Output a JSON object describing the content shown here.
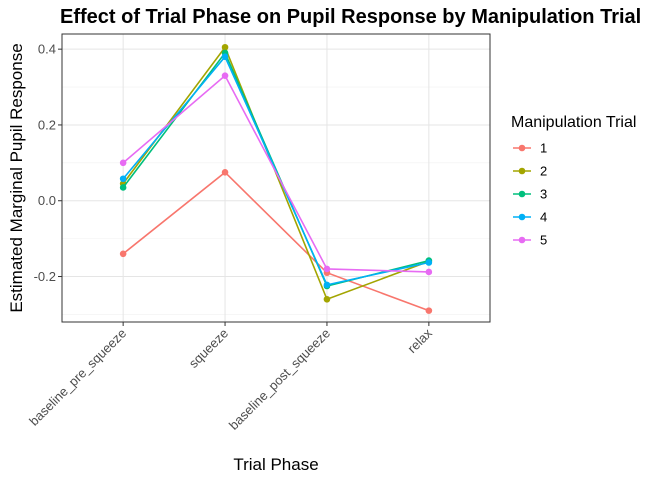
{
  "chart_data": {
    "type": "line",
    "title": "Effect of Trial Phase on Pupil Response by Manipulation Trial",
    "xlabel": "Trial Phase",
    "ylabel": "Estimated Marginal Pupil Response",
    "categories": [
      "baseline_pre_squeeze",
      "squeeze",
      "baseline_post_squeeze",
      "relax"
    ],
    "ylim": [
      -0.32,
      0.44
    ],
    "yticks": [
      -0.2,
      0.0,
      0.2,
      0.4
    ],
    "ytick_labels": [
      "-0.2",
      "0.0",
      "0.2",
      "0.4"
    ],
    "grid": true,
    "legend": {
      "title": "Manipulation Trial",
      "position": "right"
    },
    "series": [
      {
        "name": "1",
        "color": "#F8766D",
        "values": [
          -0.14,
          0.075,
          -0.19,
          -0.29
        ]
      },
      {
        "name": "2",
        "color": "#A3A500",
        "values": [
          0.045,
          0.405,
          -0.26,
          -0.16
        ]
      },
      {
        "name": "3",
        "color": "#00BF7D",
        "values": [
          0.035,
          0.39,
          -0.225,
          -0.158
        ]
      },
      {
        "name": "4",
        "color": "#00B0F6",
        "values": [
          0.058,
          0.38,
          -0.222,
          -0.163
        ]
      },
      {
        "name": "5",
        "color": "#E76BF3",
        "values": [
          0.1,
          0.33,
          -0.18,
          -0.188
        ]
      }
    ]
  }
}
